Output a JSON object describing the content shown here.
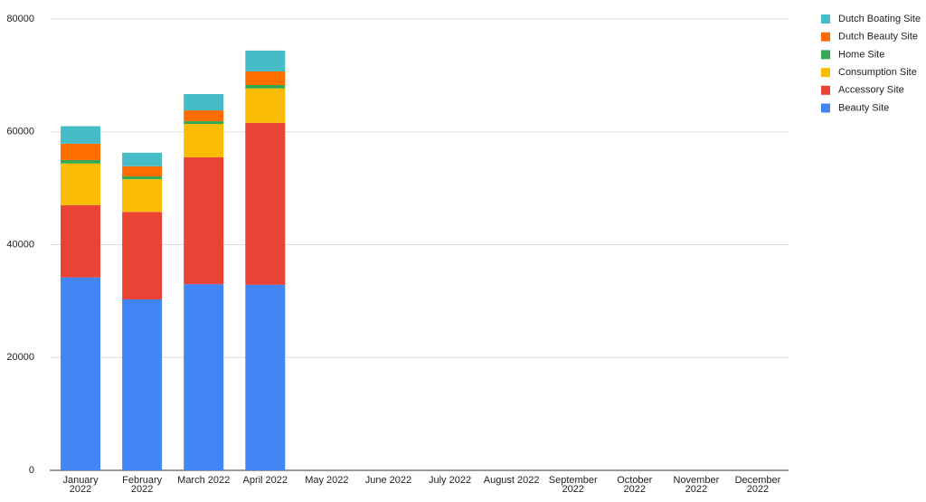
{
  "chart_data": {
    "type": "stacked_bar",
    "categories": [
      "January 2022",
      "February 2022",
      "March 2022",
      "April 2022",
      "May 2022",
      "June 2022",
      "July 2022",
      "August 2022",
      "September 2022",
      "October 2022",
      "November 2022",
      "December 2022"
    ],
    "series": [
      {
        "name": "Beauty Site",
        "color": "#4285f4",
        "values": [
          34200,
          30300,
          33000,
          32900,
          null,
          null,
          null,
          null,
          null,
          null,
          null,
          null
        ]
      },
      {
        "name": "Accessory Site",
        "color": "#ea4335",
        "values": [
          12800,
          15500,
          22500,
          28700,
          null,
          null,
          null,
          null,
          null,
          null,
          null,
          null
        ]
      },
      {
        "name": "Consumption Site",
        "color": "#fbbc04",
        "values": [
          7400,
          5800,
          5900,
          6100,
          null,
          null,
          null,
          null,
          null,
          null,
          null,
          null
        ]
      },
      {
        "name": "Home Site",
        "color": "#34a853",
        "values": [
          600,
          500,
          500,
          600,
          null,
          null,
          null,
          null,
          null,
          null,
          null,
          null
        ]
      },
      {
        "name": "Dutch Beauty Site",
        "color": "#ff6d01",
        "values": [
          2900,
          1800,
          1900,
          2400,
          null,
          null,
          null,
          null,
          null,
          null,
          null,
          null
        ]
      },
      {
        "name": "Dutch Boating Site",
        "color": "#46bdc6",
        "values": [
          3100,
          2400,
          2900,
          3700,
          null,
          null,
          null,
          null,
          null,
          null,
          null,
          null
        ]
      }
    ],
    "ylim": [
      0,
      80000
    ],
    "yticks": [
      0,
      20000,
      40000,
      60000,
      80000
    ],
    "grid": true,
    "legend": "right"
  }
}
